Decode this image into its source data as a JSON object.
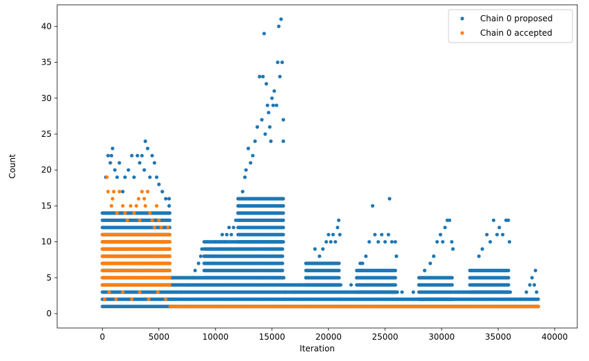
{
  "chart_data": {
    "type": "scatter",
    "title": "",
    "xlabel": "Iteration",
    "ylabel": "Count",
    "xlim": [
      -4000,
      42000
    ],
    "ylim": [
      -2,
      43
    ],
    "xticks": [
      0,
      5000,
      10000,
      15000,
      20000,
      25000,
      30000,
      35000,
      40000
    ],
    "yticks": [
      0,
      5,
      10,
      15,
      20,
      25,
      30,
      35,
      40
    ],
    "grid": false,
    "legend": "top-right",
    "series": [
      {
        "name": "Chain 0 proposed",
        "color": "#1f77b4",
        "points": [
          [
            300,
            19
          ],
          [
            500,
            22
          ],
          [
            700,
            21
          ],
          [
            800,
            22
          ],
          [
            900,
            23
          ],
          [
            1100,
            20
          ],
          [
            1300,
            19
          ],
          [
            1500,
            21
          ],
          [
            1800,
            17
          ],
          [
            2000,
            19
          ],
          [
            2300,
            20
          ],
          [
            2600,
            22
          ],
          [
            2800,
            19
          ],
          [
            3100,
            22
          ],
          [
            3300,
            21
          ],
          [
            3500,
            22
          ],
          [
            3700,
            20
          ],
          [
            3800,
            24
          ],
          [
            4000,
            23
          ],
          [
            4200,
            19
          ],
          [
            4400,
            22
          ],
          [
            4600,
            21
          ],
          [
            4800,
            19
          ],
          [
            5000,
            18
          ],
          [
            5300,
            17
          ],
          [
            5600,
            16
          ],
          [
            5900,
            15
          ],
          [
            5900,
            16
          ],
          [
            5950,
            13
          ],
          [
            6300,
            2
          ],
          [
            7000,
            3
          ],
          [
            7500,
            4
          ],
          [
            8000,
            5
          ],
          [
            8200,
            6
          ],
          [
            8500,
            7
          ],
          [
            8700,
            8
          ],
          [
            8800,
            9
          ],
          [
            9000,
            8
          ],
          [
            9200,
            7
          ],
          [
            9400,
            8
          ],
          [
            9600,
            9
          ],
          [
            9800,
            8
          ],
          [
            10000,
            10
          ],
          [
            10200,
            9
          ],
          [
            10400,
            10
          ],
          [
            10600,
            11
          ],
          [
            10800,
            10
          ],
          [
            11000,
            11
          ],
          [
            11200,
            12
          ],
          [
            11400,
            11
          ],
          [
            11600,
            12
          ],
          [
            11800,
            13
          ],
          [
            12000,
            14
          ],
          [
            12200,
            15
          ],
          [
            12400,
            17
          ],
          [
            12600,
            19
          ],
          [
            12700,
            20
          ],
          [
            12900,
            23
          ],
          [
            13100,
            21
          ],
          [
            13300,
            22
          ],
          [
            13500,
            24
          ],
          [
            13700,
            26
          ],
          [
            13900,
            33
          ],
          [
            14100,
            27
          ],
          [
            14200,
            33
          ],
          [
            14300,
            39
          ],
          [
            14400,
            25
          ],
          [
            14500,
            32
          ],
          [
            14600,
            29
          ],
          [
            14700,
            28
          ],
          [
            14800,
            26
          ],
          [
            14900,
            24
          ],
          [
            15000,
            30
          ],
          [
            15100,
            29
          ],
          [
            15200,
            31
          ],
          [
            15400,
            29
          ],
          [
            15500,
            35
          ],
          [
            15600,
            40
          ],
          [
            15700,
            33
          ],
          [
            15800,
            41
          ],
          [
            15900,
            35
          ],
          [
            16000,
            27
          ],
          [
            16000,
            24
          ],
          [
            16200,
            3
          ],
          [
            17000,
            3
          ],
          [
            17500,
            4
          ],
          [
            18000,
            5
          ],
          [
            18200,
            6
          ],
          [
            18600,
            7
          ],
          [
            18800,
            9
          ],
          [
            19200,
            8
          ],
          [
            19500,
            9
          ],
          [
            19800,
            10
          ],
          [
            20000,
            11
          ],
          [
            20200,
            10
          ],
          [
            20400,
            11
          ],
          [
            20600,
            10
          ],
          [
            20800,
            12
          ],
          [
            20900,
            13
          ],
          [
            21000,
            11
          ],
          [
            21500,
            3
          ],
          [
            22000,
            4
          ],
          [
            22500,
            5
          ],
          [
            22800,
            7
          ],
          [
            23000,
            7
          ],
          [
            23300,
            8
          ],
          [
            23600,
            10
          ],
          [
            23900,
            15
          ],
          [
            24100,
            11
          ],
          [
            24400,
            10
          ],
          [
            24700,
            11
          ],
          [
            25000,
            10
          ],
          [
            25300,
            11
          ],
          [
            25400,
            16
          ],
          [
            25600,
            10
          ],
          [
            25900,
            10
          ],
          [
            26000,
            8
          ],
          [
            26500,
            3
          ],
          [
            27500,
            3
          ],
          [
            28000,
            4
          ],
          [
            28500,
            6
          ],
          [
            29000,
            7
          ],
          [
            29300,
            8
          ],
          [
            29600,
            10
          ],
          [
            29900,
            11
          ],
          [
            30100,
            10
          ],
          [
            30300,
            12
          ],
          [
            30500,
            13
          ],
          [
            30700,
            13
          ],
          [
            30900,
            10
          ],
          [
            31000,
            9
          ],
          [
            31500,
            3
          ],
          [
            32500,
            3
          ],
          [
            33000,
            5
          ],
          [
            33300,
            8
          ],
          [
            33600,
            9
          ],
          [
            34000,
            11
          ],
          [
            34300,
            10
          ],
          [
            34600,
            13
          ],
          [
            34900,
            11
          ],
          [
            35100,
            12
          ],
          [
            35400,
            11
          ],
          [
            35700,
            13
          ],
          [
            35900,
            13
          ],
          [
            36000,
            10
          ],
          [
            36500,
            2
          ],
          [
            37000,
            2
          ],
          [
            37500,
            3
          ],
          [
            37800,
            4
          ],
          [
            38000,
            5
          ],
          [
            38200,
            4
          ],
          [
            38300,
            6
          ],
          [
            38400,
            3
          ]
        ],
        "bands": [
          [
            0,
            6000,
            1,
            14
          ],
          [
            6000,
            16100,
            1,
            5
          ],
          [
            9000,
            16000,
            5,
            10
          ],
          [
            12000,
            16000,
            10,
            16
          ],
          [
            16100,
            21100,
            1,
            4
          ],
          [
            18000,
            21000,
            4,
            7
          ],
          [
            21100,
            26100,
            1,
            3
          ],
          [
            22500,
            26000,
            3,
            6
          ],
          [
            26100,
            31100,
            1,
            2
          ],
          [
            28000,
            31000,
            2,
            5
          ],
          [
            31100,
            36100,
            1,
            3
          ],
          [
            32500,
            36000,
            3,
            6
          ],
          [
            36100,
            38600,
            1,
            2
          ]
        ]
      },
      {
        "name": "Chain 0 accepted",
        "color": "#ff7f0e",
        "points": [
          [
            400,
            19
          ],
          [
            500,
            17
          ],
          [
            800,
            15
          ],
          [
            900,
            16
          ],
          [
            1000,
            17
          ],
          [
            1300,
            14
          ],
          [
            1500,
            17
          ],
          [
            1800,
            15
          ],
          [
            2000,
            14
          ],
          [
            2200,
            13
          ],
          [
            2500,
            15
          ],
          [
            2800,
            14
          ],
          [
            3000,
            15
          ],
          [
            3200,
            16
          ],
          [
            3300,
            13
          ],
          [
            3500,
            17
          ],
          [
            3700,
            16
          ],
          [
            3800,
            15
          ],
          [
            4000,
            17
          ],
          [
            4200,
            14
          ],
          [
            4400,
            13
          ],
          [
            4600,
            12
          ],
          [
            4800,
            15
          ],
          [
            5000,
            13
          ],
          [
            5200,
            12
          ],
          [
            5500,
            11
          ],
          [
            5800,
            12
          ],
          [
            200,
            2
          ],
          [
            600,
            3
          ],
          [
            1200,
            2
          ],
          [
            1800,
            3
          ],
          [
            2600,
            2
          ],
          [
            3300,
            3
          ],
          [
            4100,
            2
          ],
          [
            4900,
            3
          ],
          [
            5600,
            2
          ]
        ],
        "bands": [
          [
            0,
            6000,
            4,
            11
          ],
          [
            6000,
            38600,
            1,
            1
          ]
        ]
      }
    ]
  }
}
